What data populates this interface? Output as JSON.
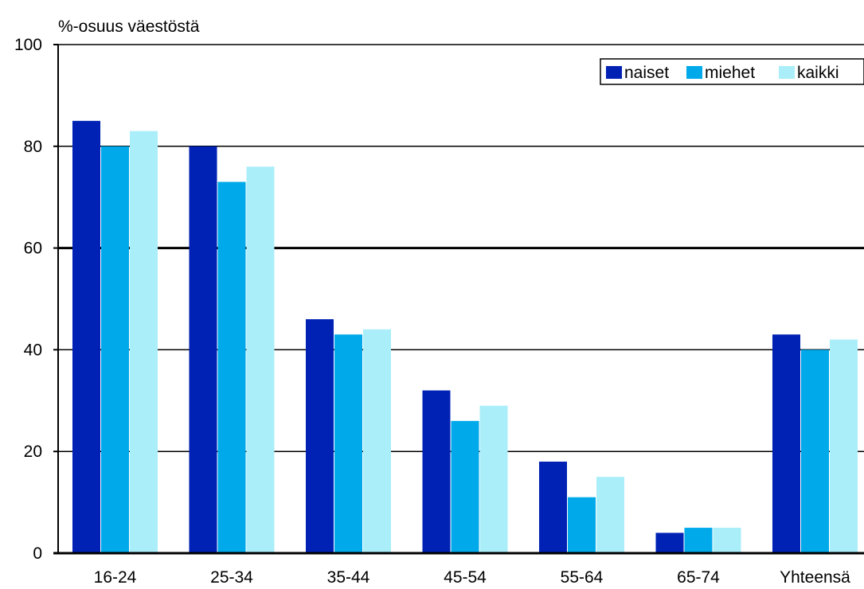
{
  "chart_data": {
    "type": "bar",
    "title": "",
    "ylabel": "%-osuus väestöstä",
    "xlabel": "",
    "categories": [
      "16-24",
      "25-34",
      "35-44",
      "45-54",
      "55-64",
      "65-74",
      "Yhteensä"
    ],
    "series": [
      {
        "name": "naiset",
        "color": "#0022b4",
        "values": [
          85,
          80,
          46,
          32,
          18,
          4,
          43
        ]
      },
      {
        "name": "miehet",
        "color": "#00aaea",
        "values": [
          80,
          73,
          43,
          26,
          11,
          5,
          40
        ]
      },
      {
        "name": "kaikki",
        "color": "#aaeefa",
        "values": [
          83,
          76,
          44,
          29,
          15,
          5,
          42
        ]
      }
    ],
    "ylim": [
      0,
      100
    ],
    "yticks": [
      0,
      20,
      40,
      60,
      80,
      100
    ],
    "grid": true,
    "legend_position": "top-right"
  }
}
